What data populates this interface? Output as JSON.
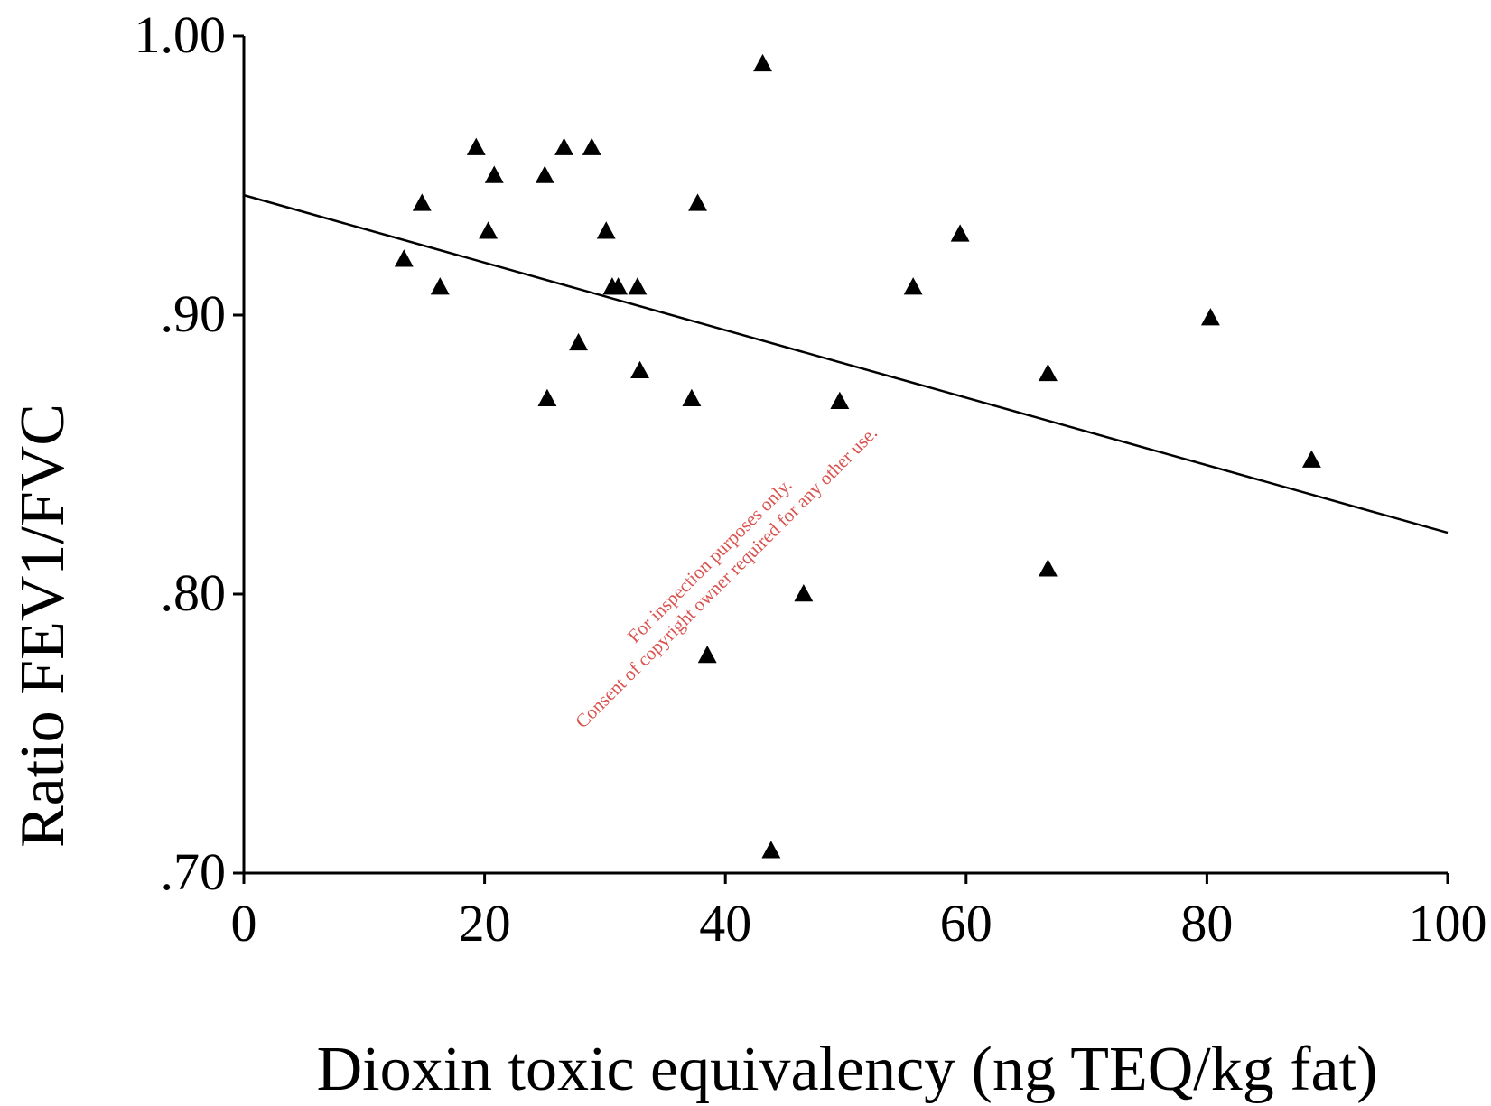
{
  "chart_data": {
    "type": "scatter",
    "title": "",
    "xlabel": "Dioxin toxic equivalency (ng TEQ/kg fat)",
    "ylabel": "Ratio FEV1/FVC",
    "xlim": [
      0,
      100
    ],
    "ylim": [
      0.7,
      1.0
    ],
    "x_ticks": [
      0,
      20,
      40,
      60,
      80,
      100
    ],
    "x_tick_labels": [
      "0",
      "20",
      "40",
      "60",
      "80",
      "100"
    ],
    "y_ticks": [
      0.7,
      0.8,
      0.9,
      1.0
    ],
    "y_tick_labels": [
      ".70",
      ".80",
      ".90",
      "1.00"
    ],
    "marker": "triangle",
    "grid": false,
    "colors": {
      "marker": "#000000",
      "axis": "#000000",
      "fit_line": "#000000",
      "watermark": "#d9534f"
    },
    "points": [
      {
        "x": 13.3,
        "y": 0.92
      },
      {
        "x": 14.8,
        "y": 0.94
      },
      {
        "x": 16.3,
        "y": 0.91
      },
      {
        "x": 19.3,
        "y": 0.96
      },
      {
        "x": 20.3,
        "y": 0.93
      },
      {
        "x": 20.8,
        "y": 0.95
      },
      {
        "x": 25.0,
        "y": 0.95
      },
      {
        "x": 25.2,
        "y": 0.87
      },
      {
        "x": 26.6,
        "y": 0.96
      },
      {
        "x": 27.8,
        "y": 0.89
      },
      {
        "x": 28.9,
        "y": 0.96
      },
      {
        "x": 30.1,
        "y": 0.93
      },
      {
        "x": 30.6,
        "y": 0.91
      },
      {
        "x": 31.1,
        "y": 0.91
      },
      {
        "x": 32.7,
        "y": 0.91
      },
      {
        "x": 32.9,
        "y": 0.88
      },
      {
        "x": 37.2,
        "y": 0.87
      },
      {
        "x": 37.7,
        "y": 0.94
      },
      {
        "x": 38.5,
        "y": 0.778
      },
      {
        "x": 43.1,
        "y": 0.99
      },
      {
        "x": 43.8,
        "y": 0.708
      },
      {
        "x": 46.5,
        "y": 0.8
      },
      {
        "x": 49.5,
        "y": 0.869
      },
      {
        "x": 55.6,
        "y": 0.91
      },
      {
        "x": 59.5,
        "y": 0.929
      },
      {
        "x": 66.8,
        "y": 0.879
      },
      {
        "x": 66.8,
        "y": 0.809
      },
      {
        "x": 80.3,
        "y": 0.899
      },
      {
        "x": 88.7,
        "y": 0.848
      }
    ],
    "fit_line": {
      "x": [
        0,
        100
      ],
      "y": [
        0.943,
        0.822
      ]
    }
  },
  "watermark": {
    "line1": "For inspection purposes only.",
    "line2": "Consent of copyright owner required for any other use."
  }
}
